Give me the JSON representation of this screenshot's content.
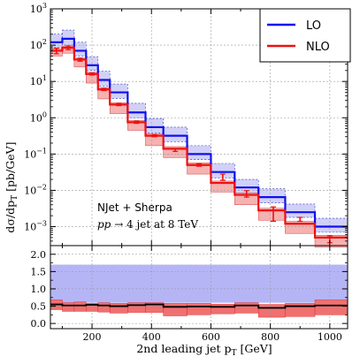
{
  "chart_data": {
    "type": "line",
    "x_edges": [
      60,
      100,
      140,
      180,
      220,
      260,
      320,
      380,
      440,
      520,
      600,
      680,
      760,
      850,
      950,
      1060
    ],
    "lo_values": [
      120,
      150,
      70,
      28,
      11,
      5,
      1.4,
      0.55,
      0.32,
      0.1,
      0.032,
      0.012,
      0.0065,
      0.0025,
      0.001
    ],
    "lo_band": {
      "low": [
        85,
        100,
        50,
        20,
        7.5,
        3.4,
        1.0,
        0.38,
        0.22,
        0.07,
        0.022,
        0.008,
        0.0045,
        0.0018,
        0.0007
      ],
      "high": [
        200,
        260,
        120,
        48,
        19,
        8.5,
        2.5,
        0.95,
        0.55,
        0.17,
        0.055,
        0.02,
        0.011,
        0.0042,
        0.0017
      ]
    },
    "nlo_values": [
      70,
      85,
      40,
      16,
      6,
      2.3,
      0.75,
      0.32,
      0.14,
      0.05,
      0.016,
      0.0075,
      0.0028,
      0.0012,
      0.0005
    ],
    "nlo_band": {
      "low": [
        50,
        60,
        25,
        9,
        3.3,
        1.3,
        0.45,
        0.17,
        0.08,
        0.028,
        0.009,
        0.004,
        0.0015,
        0.00065,
        0.00027
      ],
      "high": [
        80,
        95,
        44,
        18,
        6.8,
        2.6,
        0.85,
        0.36,
        0.16,
        0.057,
        0.018,
        0.0085,
        0.0032,
        0.0014,
        0.00058
      ]
    },
    "nlo_errors": [
      {
        "x": 80,
        "y": 70,
        "lo": 58,
        "hi": 82
      },
      {
        "x": 120,
        "y": 85,
        "lo": 75,
        "hi": 95
      },
      {
        "x": 160,
        "y": 40,
        "lo": 36,
        "hi": 44
      },
      {
        "x": 200,
        "y": 16,
        "lo": 15,
        "hi": 17
      },
      {
        "x": 240,
        "y": 6,
        "lo": 5.6,
        "hi": 6.4
      },
      {
        "x": 290,
        "y": 2.3,
        "lo": 2.15,
        "hi": 2.45
      },
      {
        "x": 350,
        "y": 0.75,
        "lo": 0.7,
        "hi": 0.8
      },
      {
        "x": 410,
        "y": 0.32,
        "lo": 0.3,
        "hi": 0.34
      },
      {
        "x": 480,
        "y": 0.13,
        "lo": 0.118,
        "hi": 0.142
      },
      {
        "x": 560,
        "y": 0.05,
        "lo": 0.046,
        "hi": 0.054
      },
      {
        "x": 640,
        "y": 0.023,
        "lo": 0.019,
        "hi": 0.028
      },
      {
        "x": 720,
        "y": 0.008,
        "lo": 0.0065,
        "hi": 0.0098
      },
      {
        "x": 810,
        "y": 0.0022,
        "lo": 0.0014,
        "hi": 0.0035
      },
      {
        "x": 900,
        "y": 0.0016,
        "lo": 0.0014,
        "hi": 0.0018
      },
      {
        "x": 1000,
        "y": 0.00045,
        "lo": 0.00036,
        "hi": 0.00056
      }
    ],
    "ratio": {
      "values": [
        0.55,
        0.52,
        0.52,
        0.54,
        0.52,
        0.5,
        0.53,
        0.55,
        0.48,
        0.49,
        0.48,
        0.52,
        0.45,
        0.5,
        0.52
      ],
      "band_low": [
        0.4,
        0.35,
        0.35,
        0.35,
        0.33,
        0.3,
        0.32,
        0.32,
        0.22,
        0.25,
        0.28,
        0.3,
        0.18,
        0.2,
        0.25
      ],
      "band_high": [
        0.68,
        0.6,
        0.62,
        0.58,
        0.6,
        0.58,
        0.6,
        0.6,
        0.58,
        0.58,
        0.56,
        0.6,
        0.55,
        0.58,
        0.68
      ],
      "lo_band_low": 0.6,
      "lo_band_high": 1.7
    },
    "xlim": [
      60,
      1060
    ],
    "ylim": [
      0.0003,
      1000
    ],
    "yscale": "log",
    "ratio_ylim": [
      -0.15,
      2.25
    ],
    "x_ticks": [
      200,
      400,
      600,
      800,
      1000
    ],
    "y_ticks": [
      {
        "value": 0.001,
        "exp": "−3"
      },
      {
        "value": 0.01,
        "exp": "−2"
      },
      {
        "value": 0.1,
        "exp": "−1"
      },
      {
        "value": 1,
        "exp": "0"
      },
      {
        "value": 10,
        "exp": "1"
      },
      {
        "value": 100,
        "exp": "2"
      },
      {
        "value": 1000,
        "exp": "3"
      }
    ],
    "ratio_ticks": [
      "0.0",
      "0.5",
      "1.0",
      "1.5",
      "2.0"
    ],
    "ylabel": "dσ/dp",
    "ylabel_sub": "T",
    "ylabel_unit": " [pb/GeV]",
    "xlabel": "2nd leading jet p",
    "xlabel_sub": "T",
    "xlabel_unit": " [GeV]",
    "grid": true,
    "legend_placement": "top-right",
    "series": [
      {
        "name": "LO",
        "color": "#1010ee"
      },
      {
        "name": "NLO",
        "color": "#ee1010"
      }
    ],
    "annotation_line1": "NJet + Sherpa",
    "annotation_line2": {
      "a": "pp",
      "b": " → 4 jet at 8 TeV"
    },
    "colors": {
      "lo": "#1010ee",
      "nlo": "#ee1010",
      "lo_band": "#b8b8f5",
      "nlo_band": "#f5a3a3",
      "ratio_lo_band": "#a8a8f5",
      "ratio_nlo_band": "#f07070"
    }
  }
}
